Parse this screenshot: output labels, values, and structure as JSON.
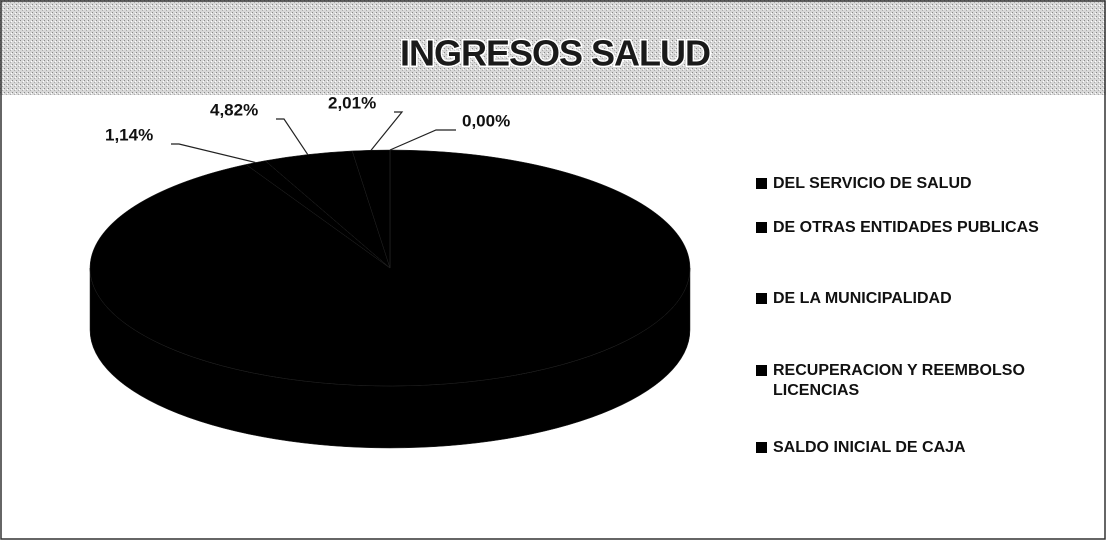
{
  "chart_data": {
    "type": "pie3d",
    "title": "INGRESOS SALUD",
    "categories": [
      "DEL SERVICIO DE SALUD",
      "DE OTRAS ENTIDADES PUBLICAS",
      "DE LA MUNICIPALIDAD",
      "RECUPERACION Y REEMBOLSO LICENCIAS",
      "SALDO INICIAL DE CAJA"
    ],
    "values": [
      92.03,
      1.14,
      4.82,
      2.01,
      0.0
    ],
    "value_labels": [
      null,
      "1,14%",
      "4,82%",
      "2,01%",
      "0,00%"
    ],
    "colors": [
      "#000000",
      "#000000",
      "#000000",
      "#000000",
      "#000000"
    ],
    "legend": "right"
  }
}
